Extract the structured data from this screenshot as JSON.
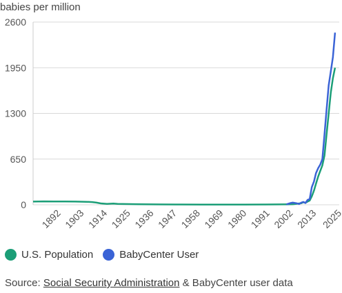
{
  "chart_data": {
    "type": "line",
    "ylabel": "babies per million",
    "ylim": [
      0,
      2600
    ],
    "yticks": [
      "0",
      "650",
      "1300",
      "1950",
      "2600"
    ],
    "xlim": [
      1880,
      2025
    ],
    "xticks": [
      "1892",
      "1903",
      "1914",
      "1925",
      "1936",
      "1947",
      "1958",
      "1969",
      "1980",
      "1991",
      "2002",
      "2013",
      "2025"
    ],
    "grid": "horizontal",
    "legend_position": "bottom",
    "series": [
      {
        "name": "U.S. Population",
        "color": "#1b9e77",
        "points": [
          [
            1880,
            45
          ],
          [
            1885,
            48
          ],
          [
            1890,
            46
          ],
          [
            1895,
            47
          ],
          [
            1900,
            45
          ],
          [
            1905,
            42
          ],
          [
            1908,
            38
          ],
          [
            1910,
            30
          ],
          [
            1912,
            20
          ],
          [
            1915,
            12
          ],
          [
            1918,
            18
          ],
          [
            1920,
            12
          ],
          [
            1925,
            10
          ],
          [
            1930,
            8
          ],
          [
            1935,
            6
          ],
          [
            1940,
            5
          ],
          [
            1950,
            4
          ],
          [
            1960,
            3
          ],
          [
            1970,
            3
          ],
          [
            1980,
            3
          ],
          [
            1990,
            4
          ],
          [
            1995,
            5
          ],
          [
            2000,
            6
          ],
          [
            2003,
            8
          ],
          [
            2005,
            15
          ],
          [
            2007,
            22
          ],
          [
            2008,
            35
          ],
          [
            2009,
            28
          ],
          [
            2010,
            45
          ],
          [
            2011,
            60
          ],
          [
            2012,
            120
          ],
          [
            2013,
            200
          ],
          [
            2014,
            300
          ],
          [
            2015,
            400
          ],
          [
            2016,
            480
          ],
          [
            2017,
            560
          ],
          [
            2018,
            700
          ],
          [
            2019,
            1000
          ],
          [
            2020,
            1300
          ],
          [
            2021,
            1600
          ],
          [
            2022,
            1800
          ],
          [
            2023,
            1950
          ]
        ]
      },
      {
        "name": "BabyCenter User",
        "color": "#3a63d6",
        "points": [
          [
            2000,
            5
          ],
          [
            2002,
            25
          ],
          [
            2003,
            30
          ],
          [
            2005,
            20
          ],
          [
            2006,
            10
          ],
          [
            2007,
            30
          ],
          [
            2008,
            40
          ],
          [
            2009,
            25
          ],
          [
            2010,
            70
          ],
          [
            2011,
            80
          ],
          [
            2012,
            250
          ],
          [
            2013,
            330
          ],
          [
            2014,
            450
          ],
          [
            2015,
            520
          ],
          [
            2016,
            570
          ],
          [
            2017,
            650
          ],
          [
            2018,
            1000
          ],
          [
            2019,
            1350
          ],
          [
            2020,
            1700
          ],
          [
            2021,
            1900
          ],
          [
            2022,
            2100
          ],
          [
            2023,
            2450
          ]
        ]
      }
    ]
  },
  "source": {
    "prefix": "Source: ",
    "link_text": "Social Security Administration",
    "suffix": " & BabyCenter user data"
  }
}
